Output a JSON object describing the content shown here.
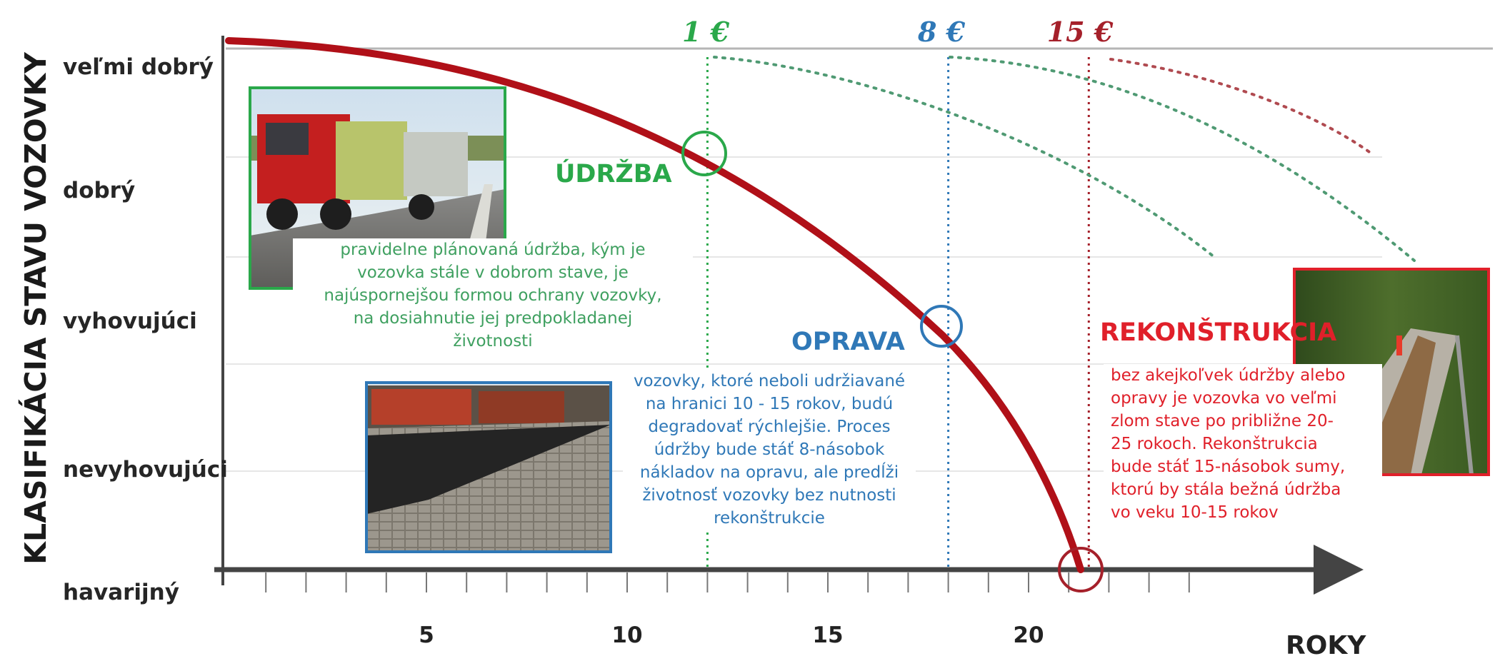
{
  "y_axis": {
    "title": "KLASIFIKÁCIA STAVU VOZOVKY",
    "levels": [
      "veľmi dobrý",
      "dobrý",
      "vyhovujúci",
      "nevyhovujúci",
      "havarijný"
    ]
  },
  "x_axis": {
    "title": "ROKY",
    "ticks": [
      "5",
      "10",
      "15",
      "20"
    ],
    "tick_values": [
      5,
      10,
      15,
      20
    ]
  },
  "costs": [
    {
      "label": "1 €",
      "color": "#2aa84a",
      "year": 12
    },
    {
      "label": "8 €",
      "color": "#2f78b7",
      "year": 18
    },
    {
      "label": "15 €",
      "color": "#a5202a",
      "year": 21.5
    }
  ],
  "phases": {
    "maintenance": {
      "title": "ÚDRŽBA",
      "color": "#2aa84a",
      "text": "pravidelne plánovaná údržba, kým je\nvozovka stále v dobrom stave, je\nnajúspornejšou formou ochrany vozovky,\nna dosiahnutie jej predpokladanej\nživotnosti"
    },
    "repair": {
      "title": "OPRAVA",
      "color": "#2f78b7",
      "text": "vozovky, ktoré neboli udržiavané\nna hranici 10 - 15 rokov, budú\ndegradovať rýchlejšie. Proces\núdržby bude stáť 8-násobok\nnákladov na opravu, ale predĺži\nživotnosť vozovky bez nutnosti\nrekonštrukcie"
    },
    "reconstruction": {
      "title": "REKONŠTRUKCIA",
      "color": "#e0202a",
      "text": "bez akejkoľvek údržby alebo\nopravy je vozovka vo veľmi\nzlom stave po približne 20-\n25 rokoch. Rekonštrukcia\nbude stáť 15-násobok sumy,\nktorú by stála bežná údržba\nvo veku 10-15 rokov"
    }
  },
  "photos": {
    "truck": {
      "border_color": "#2aa84a"
    },
    "paver": {
      "border_color": "#2f78b7"
    },
    "road_work": {
      "border_color": "#e0202a"
    }
  },
  "colors": {
    "curve": "#b01018",
    "axis": "#444444"
  }
}
